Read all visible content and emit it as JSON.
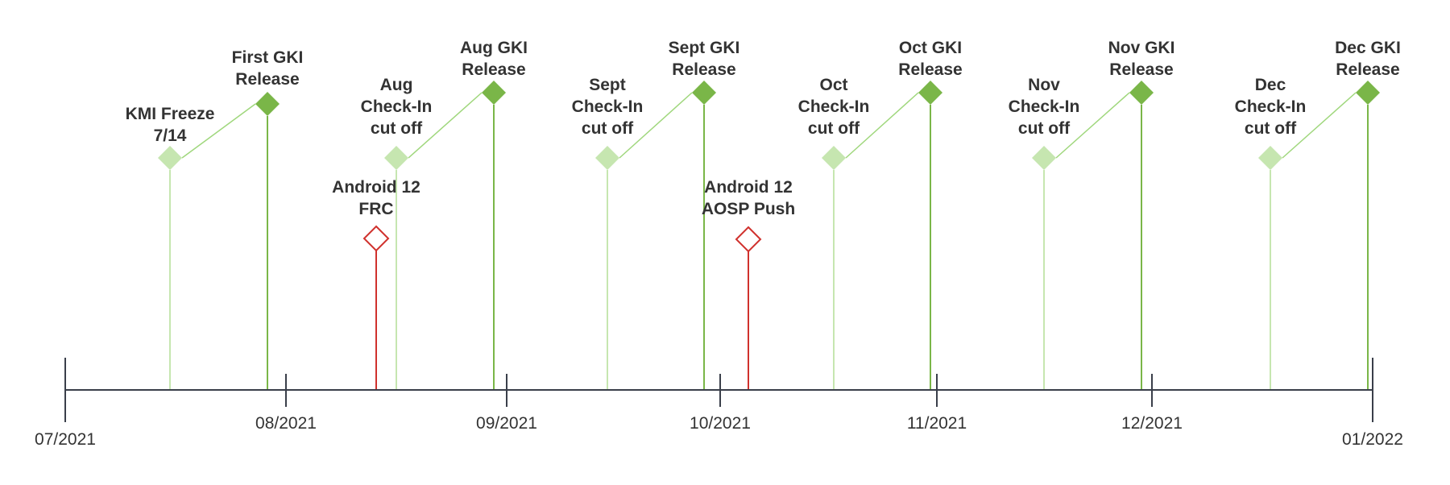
{
  "colors": {
    "axis": "#3a3f4a",
    "checkin": "#c6e6b0",
    "release": "#7ab648",
    "android": "#d0312d",
    "text": "#333333"
  },
  "axis": {
    "ticks": [
      "07/2021",
      "08/2021",
      "09/2021",
      "10/2021",
      "11/2021",
      "12/2021",
      "01/2022"
    ]
  },
  "events": [
    {
      "type": "checkin",
      "icon": "diamond-filled-light",
      "lines": [
        "KMI Freeze",
        "7/14"
      ]
    },
    {
      "type": "release",
      "icon": "diamond-filled-dark",
      "lines": [
        "First GKI",
        "Release"
      ]
    },
    {
      "type": "android",
      "icon": "diamond-outline-red",
      "lines": [
        "Android 12",
        "FRC"
      ]
    },
    {
      "type": "checkin",
      "icon": "diamond-filled-light",
      "lines": [
        "Aug",
        "Check-In",
        "cut off"
      ]
    },
    {
      "type": "release",
      "icon": "diamond-filled-dark",
      "lines": [
        "Aug GKI",
        "Release"
      ]
    },
    {
      "type": "checkin",
      "icon": "diamond-filled-light",
      "lines": [
        "Sept",
        "Check-In",
        "cut off"
      ]
    },
    {
      "type": "release",
      "icon": "diamond-filled-dark",
      "lines": [
        "Sept GKI",
        "Release"
      ]
    },
    {
      "type": "android",
      "icon": "diamond-outline-red",
      "lines": [
        "Android 12",
        "AOSP Push"
      ]
    },
    {
      "type": "checkin",
      "icon": "diamond-filled-light",
      "lines": [
        "Oct",
        "Check-In",
        "cut off"
      ]
    },
    {
      "type": "release",
      "icon": "diamond-filled-dark",
      "lines": [
        "Oct GKI",
        "Release"
      ]
    },
    {
      "type": "checkin",
      "icon": "diamond-filled-light",
      "lines": [
        "Nov",
        "Check-In",
        "cut off"
      ]
    },
    {
      "type": "release",
      "icon": "diamond-filled-dark",
      "lines": [
        "Nov GKI",
        "Release"
      ]
    },
    {
      "type": "checkin",
      "icon": "diamond-filled-light",
      "lines": [
        "Dec",
        "Check-In",
        "cut off"
      ]
    },
    {
      "type": "release",
      "icon": "diamond-filled-dark",
      "lines": [
        "Dec GKI",
        "Release"
      ]
    }
  ]
}
